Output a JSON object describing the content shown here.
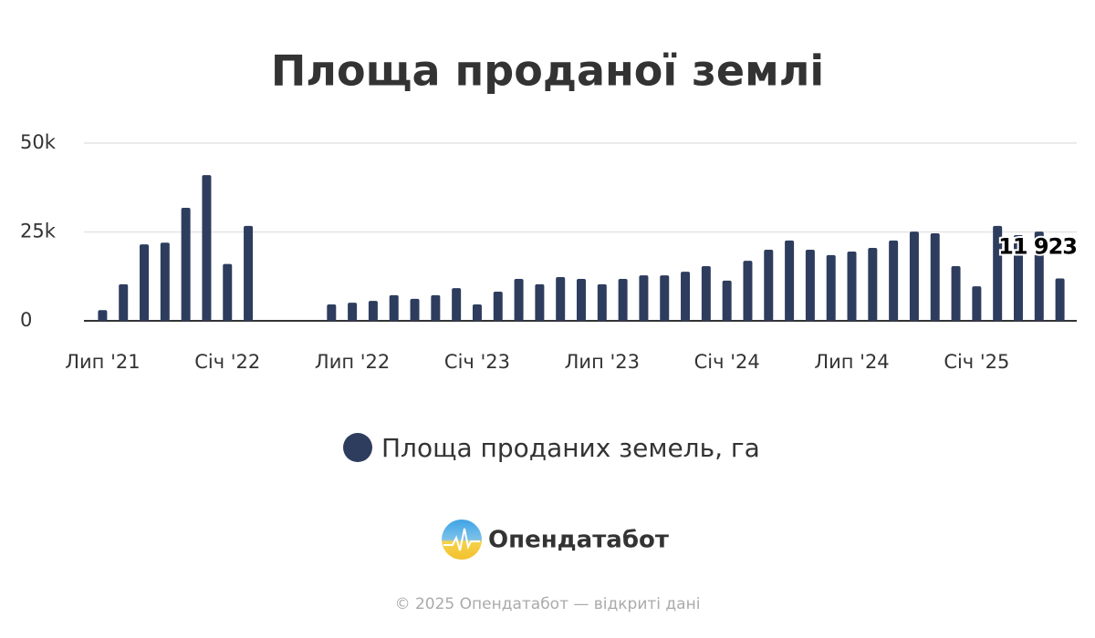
{
  "chart_data": {
    "type": "bar",
    "title": "Площа проданої землі",
    "categories": [
      "Лип '21",
      null,
      null,
      null,
      null,
      null,
      "Січ '22",
      null,
      null,
      null,
      null,
      null,
      "Лип '22",
      null,
      null,
      null,
      null,
      null,
      "Січ '23",
      null,
      null,
      null,
      null,
      null,
      "Лип '23",
      null,
      null,
      null,
      null,
      null,
      "Січ '24",
      null,
      null,
      null,
      null,
      null,
      "Лип '24",
      null,
      null,
      null,
      null,
      null,
      "Січ '25",
      null,
      null,
      null,
      null
    ],
    "series": [
      {
        "name": "Площа проданих земель, га",
        "color": "#2e3d5e",
        "values": [
          3000,
          10300,
          21500,
          22000,
          31800,
          41000,
          16000,
          26700,
          null,
          null,
          null,
          4600,
          5100,
          5600,
          7200,
          6200,
          7200,
          9200,
          4600,
          8200,
          11800,
          10300,
          12300,
          11800,
          10300,
          11800,
          12800,
          12800,
          13800,
          15400,
          11300,
          16900,
          20000,
          22600,
          20000,
          18500,
          19500,
          20500,
          22600,
          25100,
          24600,
          15400,
          9700,
          26700,
          24100,
          25100,
          11923
        ],
        "value_labels": [
          null,
          null,
          null,
          null,
          null,
          null,
          null,
          null,
          null,
          null,
          null,
          null,
          null,
          null,
          null,
          null,
          null,
          null,
          null,
          null,
          null,
          null,
          null,
          null,
          null,
          null,
          null,
          null,
          null,
          null,
          null,
          null,
          null,
          null,
          null,
          null,
          null,
          null,
          null,
          null,
          null,
          null,
          null,
          null,
          null,
          null,
          "11 923"
        ]
      }
    ],
    "ylim": [
      0,
      50000
    ],
    "yticks": [
      0,
      {
        "value": 25000,
        "label": "25k"
      },
      {
        "value": 50000,
        "label": "50k"
      }
    ],
    "grid": true,
    "legend": "bottom"
  },
  "brand": "Опендатабот",
  "footer": "© 2025 Опендатабот — відкриті дані"
}
